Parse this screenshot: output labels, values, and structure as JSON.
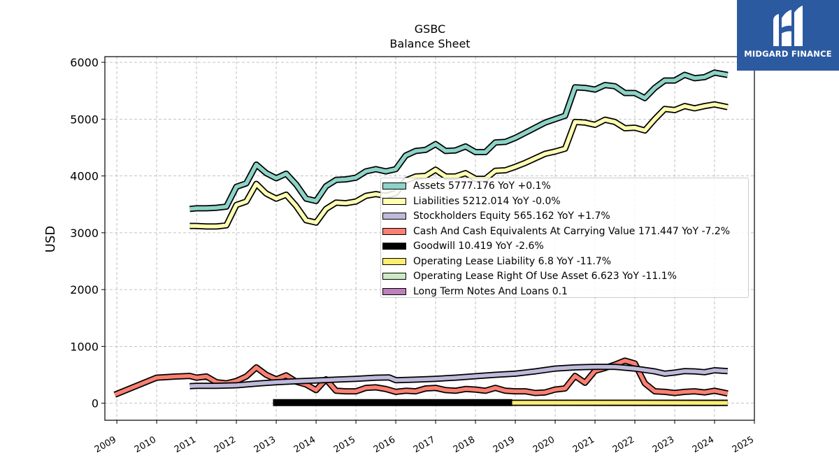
{
  "brand": {
    "name": "MIDGARD FINANCE",
    "color": "#2c5aa0"
  },
  "chart_data": {
    "type": "line",
    "title": "GSBC",
    "subtitle": "Balance  Sheet",
    "ylabel": "USD",
    "xlabel": "",
    "xlim": [
      2008.7,
      2025.0
    ],
    "ylim": [
      -300,
      6100
    ],
    "grid": true,
    "legend_position": "center-right",
    "x_ticks": [
      "2009",
      "2010",
      "2011",
      "2012",
      "2013",
      "2014",
      "2015",
      "2016",
      "2017",
      "2018",
      "2019",
      "2020",
      "2021",
      "2022",
      "2023",
      "2024",
      "2025"
    ],
    "y_ticks": [
      "0",
      "1000",
      "2000",
      "3000",
      "4000",
      "5000",
      "6000"
    ],
    "series": [
      {
        "name": "Assets",
        "legend_label": "Assets  5777.176 YoY +0.1%",
        "color": "#8dd3c7",
        "x": [
          2010.83,
          2011.0,
          2011.25,
          2011.5,
          2011.75,
          2012.0,
          2012.25,
          2012.5,
          2012.75,
          2013.0,
          2013.25,
          2013.5,
          2013.75,
          2014.0,
          2014.25,
          2014.5,
          2014.75,
          2015.0,
          2015.25,
          2015.5,
          2015.75,
          2016.0,
          2016.25,
          2016.5,
          2016.75,
          2017.0,
          2017.25,
          2017.5,
          2017.75,
          2018.0,
          2018.25,
          2018.5,
          2018.75,
          2019.0,
          2019.25,
          2019.5,
          2019.75,
          2020.0,
          2020.25,
          2020.5,
          2020.75,
          2021.0,
          2021.25,
          2021.5,
          2021.75,
          2022.0,
          2022.25,
          2022.5,
          2022.75,
          2023.0,
          2023.25,
          2023.5,
          2023.75,
          2024.0,
          2024.33
        ],
        "y": [
          3420,
          3430,
          3430,
          3440,
          3460,
          3810,
          3870,
          4200,
          4050,
          3960,
          4040,
          3850,
          3600,
          3560,
          3820,
          3930,
          3940,
          3970,
          4080,
          4120,
          4080,
          4120,
          4360,
          4440,
          4460,
          4560,
          4440,
          4450,
          4520,
          4420,
          4420,
          4590,
          4600,
          4670,
          4760,
          4850,
          4940,
          5000,
          5060,
          5560,
          5550,
          5520,
          5600,
          5580,
          5460,
          5460,
          5370,
          5550,
          5680,
          5680,
          5780,
          5720,
          5740,
          5820,
          5777
        ]
      },
      {
        "name": "Liabilities",
        "legend_label": "Liabilities  5212.014 YoY -0.0%",
        "color": "#ffffb3",
        "x": [
          2010.83,
          2011.0,
          2011.25,
          2011.5,
          2011.75,
          2012.0,
          2012.25,
          2012.5,
          2012.75,
          2013.0,
          2013.25,
          2013.5,
          2013.75,
          2014.0,
          2014.25,
          2014.5,
          2014.75,
          2015.0,
          2015.25,
          2015.5,
          2015.75,
          2016.0,
          2016.25,
          2016.5,
          2016.75,
          2017.0,
          2017.25,
          2017.5,
          2017.75,
          2018.0,
          2018.25,
          2018.5,
          2018.75,
          2019.0,
          2019.25,
          2019.5,
          2019.75,
          2020.0,
          2020.25,
          2020.5,
          2020.75,
          2021.0,
          2021.25,
          2021.5,
          2021.75,
          2022.0,
          2022.25,
          2022.5,
          2022.75,
          2023.0,
          2023.25,
          2023.5,
          2023.75,
          2024.0,
          2024.33
        ],
        "y": [
          3120,
          3120,
          3110,
          3110,
          3130,
          3490,
          3550,
          3860,
          3690,
          3600,
          3670,
          3470,
          3220,
          3180,
          3420,
          3530,
          3520,
          3550,
          3650,
          3680,
          3650,
          3700,
          3920,
          3990,
          4000,
          4110,
          3990,
          3990,
          4050,
          3950,
          3950,
          4090,
          4100,
          4160,
          4230,
          4310,
          4390,
          4430,
          4480,
          4950,
          4940,
          4900,
          4990,
          4950,
          4840,
          4850,
          4800,
          5000,
          5180,
          5160,
          5230,
          5190,
          5230,
          5260,
          5212
        ]
      },
      {
        "name": "Stockholders Equity",
        "legend_label": "Stockholders Equity  565.162 YoY +1.7%",
        "color": "#bebada",
        "x": [
          2010.83,
          2011.0,
          2011.5,
          2012.0,
          2012.5,
          2013.0,
          2013.5,
          2014.0,
          2014.5,
          2015.0,
          2015.5,
          2015.83,
          2016.0,
          2016.5,
          2017.0,
          2017.5,
          2018.0,
          2018.5,
          2019.0,
          2019.5,
          2020.0,
          2020.5,
          2021.0,
          2021.5,
          2022.0,
          2022.5,
          2022.75,
          2023.0,
          2023.25,
          2023.5,
          2023.75,
          2024.0,
          2024.33
        ],
        "y": [
          300,
          305,
          305,
          315,
          345,
          370,
          385,
          400,
          415,
          430,
          450,
          455,
          405,
          415,
          430,
          450,
          475,
          500,
          520,
          560,
          610,
          630,
          640,
          640,
          610,
          560,
          520,
          540,
          565,
          560,
          545,
          580,
          565
        ]
      },
      {
        "name": "Cash And Cash Equivalents At Carrying Value",
        "legend_label": "Cash And Cash Equivalents At Carrying Value  171.447 YoY -7.2%",
        "color": "#fb8072",
        "x": [
          2008.95,
          2010.0,
          2010.5,
          2010.83,
          2011.0,
          2011.25,
          2011.5,
          2011.75,
          2012.0,
          2012.25,
          2012.5,
          2012.75,
          2013.0,
          2013.25,
          2013.5,
          2013.75,
          2014.0,
          2014.25,
          2014.5,
          2014.75,
          2015.0,
          2015.25,
          2015.5,
          2015.75,
          2016.0,
          2016.25,
          2016.5,
          2016.75,
          2017.0,
          2017.25,
          2017.5,
          2017.75,
          2018.0,
          2018.25,
          2018.5,
          2018.75,
          2019.0,
          2019.25,
          2019.5,
          2019.75,
          2020.0,
          2020.25,
          2020.5,
          2020.75,
          2021.0,
          2021.25,
          2021.5,
          2021.75,
          2022.0,
          2022.25,
          2022.5,
          2022.75,
          2023.0,
          2023.25,
          2023.5,
          2023.75,
          2024.0,
          2024.33
        ],
        "y": [
          150,
          450,
          470,
          480,
          450,
          470,
          370,
          350,
          390,
          470,
          630,
          500,
          420,
          490,
          380,
          330,
          230,
          420,
          220,
          210,
          210,
          270,
          280,
          250,
          200,
          220,
          210,
          260,
          270,
          230,
          220,
          250,
          240,
          220,
          270,
          220,
          210,
          210,
          180,
          190,
          240,
          260,
          480,
          360,
          570,
          620,
          680,
          750,
          700,
          350,
          210,
          200,
          180,
          200,
          210,
          190,
          220,
          171
        ]
      },
      {
        "name": "Goodwill",
        "legend_label": "Goodwill  10.419 YoY -2.6%",
        "color": "#000000",
        "x": [
          2012.92,
          2014.0,
          2016.0,
          2018.0,
          2018.92
        ],
        "y": [
          10,
          10,
          10,
          10,
          10
        ]
      },
      {
        "name": "Operating Lease Liability",
        "legend_label": "Operating Lease Liability  6.8 YoY -11.7%",
        "color": "#ffed6f",
        "x": [
          2018.92,
          2020.0,
          2022.0,
          2024.33
        ],
        "y": [
          8,
          7.5,
          7.2,
          6.8
        ]
      },
      {
        "name": "Operating Lease Right Of Use Asset",
        "legend_label": "Operating Lease Right Of Use Asset  6.623 YoY -11.1%",
        "color": "#ccebc5",
        "x": [
          2018.92,
          2020.0,
          2022.0,
          2024.33
        ],
        "y": [
          8,
          7.5,
          7,
          6.623
        ]
      },
      {
        "name": "Long Term Notes And Loans",
        "legend_label": "Long Term Notes And Loans  0.1",
        "color": "#bc80bd",
        "x": [],
        "y": []
      }
    ]
  }
}
